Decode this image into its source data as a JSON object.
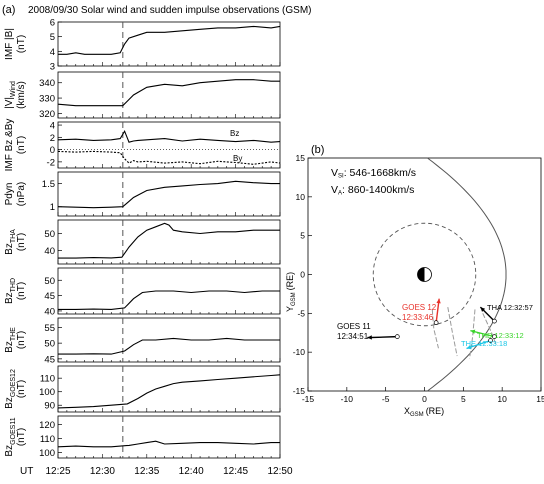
{
  "panel_a": {
    "label": "(a)",
    "title": "2008/09/30 Solar wind and sudden impulse observations (GSM)",
    "ut_label": "UT",
    "x_ticks": [
      "12:25",
      "12:30",
      "12:35",
      "12:40",
      "12:45",
      "12:50"
    ]
  },
  "panel_b": {
    "label": "(b)",
    "vsi_label": "V",
    "vsi_sub": "SI",
    "vsi_value": ": 546-1668km/s",
    "va_label": "V",
    "va_sub": "A",
    "va_value": ": 860-1400km/s",
    "xlabel_main": "X",
    "xlabel_sub": "GSM",
    "xlabel_unit": "(RE)",
    "ylabel_main": "Y",
    "ylabel_sub": "GSM",
    "ylabel_unit": "(RE)",
    "annotations": {
      "goes12_a": "GOES 12",
      "goes12_b": "12:33:46",
      "goes11_a": "GOES 11",
      "goes11_b": "12:34:51",
      "tha": "THA 12:32:57",
      "thd": "THD 12:33:12",
      "the": "THE 12:33:18"
    }
  },
  "colors": {
    "trace": "#000000",
    "dashed_event": "#555555",
    "goes12": "#e8322b",
    "thd": "#39d42a",
    "the": "#19c6e6",
    "orbit": "#9a9a9a"
  },
  "chart_data": [
    {
      "type": "line",
      "id": "imf_b",
      "ylabel_lines": [
        "IMF |B|",
        "(nT)"
      ],
      "yticks": [
        3,
        4,
        5,
        6
      ],
      "ylim": [
        3,
        6
      ],
      "x_minutes_after_1225": [
        0,
        1,
        2,
        3,
        4,
        5,
        6,
        7,
        7.5,
        8,
        9,
        10,
        12,
        14,
        16,
        18,
        20,
        22,
        24,
        25
      ],
      "series": [
        {
          "values": [
            3.8,
            3.8,
            3.9,
            3.8,
            3.8,
            3.8,
            3.8,
            3.9,
            4.5,
            4.9,
            5.1,
            5.3,
            5.3,
            5.4,
            5.5,
            5.6,
            5.6,
            5.7,
            5.6,
            5.7
          ]
        }
      ]
    },
    {
      "type": "line",
      "id": "v_wind",
      "ylabel_lines": [
        "|V|",
        "(km/s)"
      ],
      "ylabel_sub": "Wind",
      "yticks": [
        320,
        330,
        340
      ],
      "ylim": [
        317,
        347
      ],
      "x_minutes_after_1225": [
        0,
        2,
        4,
        6,
        7.3,
        8.5,
        10,
        12,
        14,
        16,
        18,
        20,
        22,
        24,
        25
      ],
      "series": [
        {
          "values": [
            326,
            325,
            325,
            325,
            325,
            332,
            337,
            339,
            338,
            340,
            341,
            342,
            342,
            341,
            341
          ]
        }
      ]
    },
    {
      "type": "line",
      "id": "imf_bz_by",
      "ylabel_lines": [
        "IMF Bz &By",
        "(nT)"
      ],
      "yticks": [
        -2,
        0,
        2,
        4
      ],
      "ylim": [
        -3,
        4.5
      ],
      "series_labels": [
        "Bz",
        "By"
      ],
      "x_minutes_after_1225": [
        0,
        2,
        4,
        6,
        7,
        7.5,
        8,
        8.5,
        9,
        10,
        12,
        14,
        16,
        18,
        20,
        22,
        24,
        25
      ],
      "series": [
        {
          "name": "Bz",
          "values": [
            1.6,
            1.7,
            1.5,
            1.6,
            1.8,
            3.0,
            1.2,
            1.4,
            1.5,
            1.6,
            1.8,
            1.4,
            1.7,
            1.5,
            1.3,
            1.5,
            1.2,
            1.3
          ]
        },
        {
          "name": "By",
          "values": [
            -0.3,
            -0.4,
            -0.3,
            -0.4,
            -0.5,
            -1.5,
            -2.2,
            -1.8,
            -2.0,
            -1.9,
            -2.2,
            -2.0,
            -2.3,
            -1.9,
            -2.1,
            -2.4,
            -2.0,
            -2.2
          ]
        }
      ]
    },
    {
      "type": "line",
      "id": "pdyn",
      "ylabel_lines": [
        "Pdyn",
        "(nPa)"
      ],
      "yticks": [
        1.0,
        1.5
      ],
      "ylim": [
        0.8,
        1.75
      ],
      "x_minutes_after_1225": [
        0,
        2,
        4,
        6,
        7.3,
        8.5,
        10,
        12,
        14,
        16,
        18,
        20,
        22,
        24,
        25
      ],
      "series": [
        {
          "values": [
            1.0,
            0.99,
            0.98,
            0.99,
            1.0,
            1.2,
            1.35,
            1.42,
            1.45,
            1.48,
            1.5,
            1.55,
            1.52,
            1.5,
            1.5
          ]
        }
      ]
    },
    {
      "type": "line",
      "id": "bz_tha",
      "ylabel_lines": [
        "Bz",
        "(nT)"
      ],
      "ylabel_sub": "THA",
      "yticks": [
        40,
        50
      ],
      "ylim": [
        32,
        58
      ],
      "x_minutes_after_1225": [
        0,
        2,
        4,
        6,
        7.2,
        8,
        9,
        10,
        11,
        12,
        12.5,
        13,
        14,
        16,
        18,
        20,
        22,
        24,
        25
      ],
      "series": [
        {
          "values": [
            35.5,
            35.5,
            35.8,
            35.6,
            36,
            42,
            48,
            52,
            54,
            56,
            55,
            52,
            51,
            50,
            51,
            51,
            52,
            52,
            52
          ]
        }
      ]
    },
    {
      "type": "line",
      "id": "bz_thd",
      "ylabel_lines": [
        "Bz",
        "(nT)"
      ],
      "ylabel_sub": "THD",
      "yticks": [
        40,
        45,
        50
      ],
      "ylim": [
        39,
        54
      ],
      "x_minutes_after_1225": [
        0,
        2,
        4,
        6,
        7.5,
        8.5,
        9.5,
        11,
        13,
        15,
        17,
        19,
        21,
        23,
        25
      ],
      "series": [
        {
          "values": [
            40.5,
            40.5,
            40.6,
            40.5,
            41,
            44,
            46,
            46.5,
            46.5,
            46,
            46.5,
            46.5,
            46,
            46.5,
            46.5
          ]
        }
      ]
    },
    {
      "type": "line",
      "id": "bz_the",
      "ylabel_lines": [
        "Bz",
        "(nT)"
      ],
      "ylabel_sub": "THE",
      "yticks": [
        45,
        50,
        55
      ],
      "ylim": [
        44,
        58
      ],
      "x_minutes_after_1225": [
        0,
        2,
        4,
        6,
        7.5,
        8.5,
        9.5,
        11,
        13,
        15,
        17,
        19,
        21,
        23,
        25
      ],
      "series": [
        {
          "values": [
            46.5,
            46.5,
            46.6,
            46.5,
            47.5,
            49.5,
            51,
            51,
            51.5,
            51,
            51,
            51.5,
            51,
            51,
            51
          ]
        }
      ]
    },
    {
      "type": "line",
      "id": "bz_goes12",
      "ylabel_lines": [
        "Bz",
        "(nT)"
      ],
      "ylabel_sub": "GOES12",
      "yticks": [
        90,
        100,
        110
      ],
      "ylim": [
        85,
        119
      ],
      "x_minutes_after_1225": [
        0,
        2,
        4,
        6,
        7.8,
        9,
        10,
        11,
        12,
        13,
        14,
        16,
        18,
        20,
        22,
        24,
        25
      ],
      "series": [
        {
          "values": [
            88,
            88.5,
            89,
            90,
            91,
            95,
            99,
            102,
            104,
            106,
            107,
            108,
            109,
            110,
            111,
            112,
            112.5
          ]
        }
      ]
    },
    {
      "type": "line",
      "id": "bz_goes11",
      "ylabel_lines": [
        "Bz",
        "(nT)"
      ],
      "ylabel_sub": "GOES11",
      "yticks": [
        100,
        110,
        120
      ],
      "ylim": [
        96,
        126
      ],
      "x_minutes_after_1225": [
        0,
        2,
        4,
        6,
        8,
        9,
        10,
        11,
        12,
        14,
        16,
        18,
        20,
        22,
        24,
        25
      ],
      "series": [
        {
          "values": [
            104,
            104.5,
            104,
            104,
            105,
            106,
            107,
            108,
            106,
            106.5,
            107,
            107,
            106.5,
            106,
            107,
            107
          ]
        }
      ]
    },
    {
      "type": "scatter",
      "id": "orbit_map",
      "xlim": [
        -15,
        15
      ],
      "ylim": [
        -15,
        15
      ],
      "xticks": [
        -15,
        -10,
        -5,
        0,
        5,
        10,
        15
      ],
      "yticks": [
        -15,
        -10,
        -5,
        0,
        5,
        10,
        15
      ],
      "points": [
        {
          "name": "GOES 12",
          "x": 1.5,
          "y": -6.2
        },
        {
          "name": "GOES 11",
          "x": -3.5,
          "y": -8.0
        },
        {
          "name": "THA",
          "x": 9.0,
          "y": -6.0
        },
        {
          "name": "THD",
          "x": 9.0,
          "y": -8.0
        },
        {
          "name": "THE",
          "x": 8.5,
          "y": -8.5
        }
      ]
    }
  ]
}
